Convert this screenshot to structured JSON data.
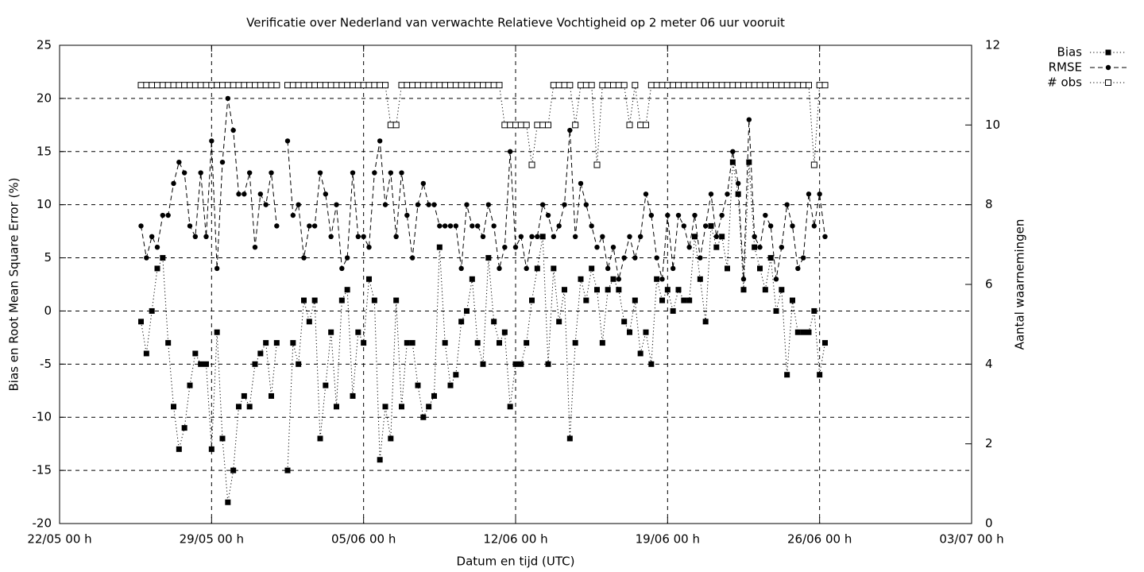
{
  "chart_data": {
    "type": "line",
    "title": "Verificatie over Nederland van verwachte Relatieve Vochtigheid op 2 meter 06 uur vooruit",
    "xlabel": "Datum en tijd (UTC)",
    "ylabel": "Bias en Root Mean Square Error (%)",
    "y2label": "Aantal waarnemingen",
    "x": [
      "25/05 18 h",
      "26/05 00 h",
      "26/05 06 h",
      "26/05 12 h",
      "26/05 18 h",
      "27/05 00 h",
      "27/05 06 h",
      "27/05 12 h",
      "27/05 18 h",
      "28/05 00 h",
      "28/05 06 h",
      "28/05 12 h",
      "28/05 18 h",
      "29/05 00 h",
      "29/05 06 h",
      "29/05 12 h",
      "29/05 18 h",
      "30/05 00 h",
      "30/05 06 h",
      "30/05 12 h",
      "30/05 18 h",
      "31/05 00 h",
      "31/05 06 h",
      "31/05 12 h",
      "31/05 18 h",
      "01/06 00 h",
      "01/06 06 h",
      "01/06 12 h",
      "01/06 18 h",
      "02/06 00 h",
      "02/06 06 h",
      "02/06 12 h",
      "02/06 18 h",
      "03/06 00 h",
      "03/06 06 h",
      "03/06 12 h",
      "03/06 18 h",
      "04/06 00 h",
      "04/06 06 h",
      "04/06 12 h",
      "04/06 18 h",
      "05/06 00 h",
      "05/06 06 h",
      "05/06 12 h",
      "05/06 18 h",
      "06/06 00 h",
      "06/06 06 h",
      "06/06 12 h",
      "06/06 18 h",
      "07/06 00 h",
      "07/06 06 h",
      "07/06 12 h",
      "07/06 18 h",
      "08/06 00 h",
      "08/06 06 h",
      "08/06 12 h",
      "08/06 18 h",
      "09/06 00 h",
      "09/06 06 h",
      "09/06 12 h",
      "09/06 18 h",
      "10/06 00 h",
      "10/06 06 h",
      "10/06 12 h",
      "10/06 18 h",
      "11/06 00 h",
      "11/06 06 h",
      "11/06 12 h",
      "11/06 18 h",
      "12/06 00 h",
      "12/06 06 h",
      "12/06 12 h",
      "12/06 18 h",
      "13/06 00 h",
      "13/06 06 h",
      "13/06 12 h",
      "13/06 18 h",
      "14/06 00 h",
      "14/06 06 h",
      "14/06 12 h",
      "14/06 18 h",
      "15/06 00 h",
      "15/06 06 h",
      "15/06 12 h",
      "15/06 18 h",
      "16/06 00 h",
      "16/06 06 h",
      "16/06 12 h",
      "16/06 18 h",
      "17/06 00 h",
      "17/06 06 h",
      "17/06 12 h",
      "17/06 18 h",
      "18/06 00 h",
      "18/06 06 h",
      "18/06 12 h",
      "18/06 18 h",
      "19/06 00 h",
      "19/06 06 h",
      "19/06 12 h",
      "19/06 18 h",
      "20/06 00 h",
      "20/06 06 h",
      "20/06 12 h",
      "20/06 18 h",
      "21/06 00 h",
      "21/06 06 h",
      "21/06 12 h",
      "21/06 18 h",
      "22/06 00 h",
      "22/06 06 h",
      "22/06 12 h",
      "22/06 18 h",
      "23/06 00 h",
      "23/06 06 h",
      "23/06 12 h",
      "23/06 18 h",
      "24/06 00 h",
      "24/06 06 h",
      "24/06 12 h",
      "24/06 18 h",
      "25/06 00 h",
      "25/06 06 h",
      "25/06 12 h",
      "25/06 18 h",
      "26/06 00 h",
      "26/06 06 h"
    ],
    "xlim": [
      "22/05 00 h",
      "03/07 00 h"
    ],
    "xticks": [
      "22/05 00 h",
      "29/05 00 h",
      "05/06 00 h",
      "12/06 00 h",
      "19/06 00 h",
      "26/06 00 h",
      "03/07 00 h"
    ],
    "ylim": [
      -20,
      25
    ],
    "yticks": [
      -20,
      -15,
      -10,
      -5,
      0,
      5,
      10,
      15,
      20,
      25
    ],
    "y2lim": [
      0,
      12
    ],
    "y2ticks": [
      0,
      2,
      4,
      6,
      8,
      10,
      12
    ],
    "grid": true,
    "legend": "top-right",
    "series": [
      {
        "name": "Bias",
        "color": "#000000",
        "dash": "dotted",
        "marker": "square",
        "values": [
          -1,
          -4,
          0,
          4,
          5,
          -3,
          -9,
          -13,
          -11,
          -7,
          -4,
          -5,
          -5,
          -13,
          -2,
          -12,
          -18,
          -15,
          -9,
          -8,
          -9,
          -5,
          -4,
          -3,
          -8,
          -3,
          null,
          -15,
          -3,
          -5,
          1,
          -1,
          1,
          -12,
          -7,
          -2,
          -9,
          1,
          2,
          -8,
          -2,
          -3,
          3,
          1,
          -14,
          -9,
          -12,
          1,
          -9,
          -3,
          -3,
          -7,
          -10,
          -9,
          -8,
          6,
          -3,
          -7,
          -6,
          -1,
          0,
          3,
          -3,
          -5,
          5,
          -1,
          -3,
          -2,
          -9,
          -5,
          -5,
          -3,
          1,
          4,
          7,
          -5,
          4,
          -1,
          2,
          -12,
          -3,
          3,
          1,
          4,
          2,
          -3,
          2,
          3,
          2,
          -1,
          -2,
          1,
          -4,
          -2,
          -5,
          3,
          1,
          2,
          0,
          2,
          1,
          1,
          7,
          3,
          -1,
          8,
          6,
          7,
          4,
          14,
          11,
          2,
          14,
          6,
          4,
          2,
          5,
          0,
          2,
          -6,
          1,
          -2,
          -2,
          -2,
          0,
          -6,
          -3
        ]
      },
      {
        "name": "RMSE",
        "color": "#000000",
        "dash": "dashed",
        "marker": "circle",
        "values": [
          8,
          5,
          7,
          6,
          9,
          9,
          12,
          14,
          13,
          8,
          7,
          13,
          7,
          16,
          4,
          14,
          20,
          17,
          11,
          11,
          13,
          6,
          11,
          10,
          13,
          8,
          null,
          16,
          9,
          10,
          5,
          8,
          8,
          13,
          11,
          7,
          10,
          4,
          5,
          13,
          7,
          7,
          6,
          13,
          16,
          10,
          13,
          7,
          13,
          9,
          5,
          10,
          12,
          10,
          10,
          8,
          8,
          8,
          8,
          4,
          10,
          8,
          8,
          7,
          10,
          8,
          4,
          6,
          15,
          6,
          7,
          4,
          7,
          7,
          10,
          9,
          7,
          8,
          10,
          17,
          7,
          12,
          10,
          8,
          6,
          7,
          4,
          6,
          3,
          5,
          7,
          5,
          7,
          11,
          9,
          5,
          3,
          9,
          4,
          9,
          8,
          6,
          9,
          5,
          8,
          11,
          7,
          9,
          11,
          15,
          12,
          3,
          18,
          7,
          6,
          9,
          8,
          3,
          6,
          10,
          8,
          4,
          5,
          11,
          8,
          11,
          7
        ]
      },
      {
        "name": "# obs",
        "color": "#000000",
        "dash": "dotted",
        "marker": "open-square",
        "axis": "y2",
        "values": [
          11,
          11,
          11,
          11,
          11,
          11,
          11,
          11,
          11,
          11,
          11,
          11,
          11,
          11,
          11,
          11,
          11,
          11,
          11,
          11,
          11,
          11,
          11,
          11,
          11,
          11,
          null,
          11,
          11,
          11,
          11,
          11,
          11,
          11,
          11,
          11,
          11,
          11,
          11,
          11,
          11,
          11,
          11,
          11,
          11,
          11,
          10,
          10,
          11,
          11,
          11,
          11,
          11,
          11,
          11,
          11,
          11,
          11,
          11,
          11,
          11,
          11,
          11,
          11,
          11,
          11,
          11,
          10,
          10,
          10,
          10,
          10,
          9,
          10,
          10,
          10,
          11,
          11,
          11,
          11,
          10,
          11,
          11,
          11,
          9,
          11,
          11,
          11,
          11,
          11,
          10,
          11,
          10,
          10,
          11,
          11,
          11,
          11,
          11,
          11,
          11,
          11,
          11,
          11,
          11,
          11,
          11,
          11,
          11,
          11,
          11,
          11,
          11,
          11,
          11,
          11,
          11,
          11,
          11,
          11,
          11,
          11,
          11,
          11,
          9,
          11,
          11
        ]
      }
    ]
  }
}
